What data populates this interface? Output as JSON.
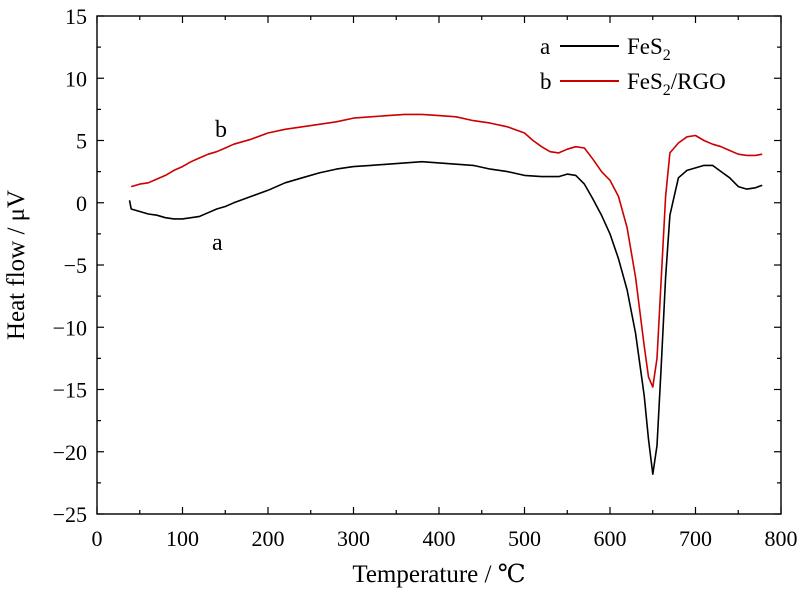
{
  "chart_data": {
    "type": "line",
    "xlabel": "Temperature / ℃",
    "ylabel": "Heat flow / μV",
    "xlim": [
      0,
      800
    ],
    "ylim": [
      -25,
      15
    ],
    "xticks": [
      0,
      100,
      200,
      300,
      400,
      500,
      600,
      700,
      800
    ],
    "yticks": [
      15,
      10,
      5,
      0,
      -5,
      -10,
      -15,
      -20,
      -25
    ],
    "ytick_labels": [
      "15",
      "10",
      "5",
      "0",
      "−5",
      "−10",
      "−15",
      "−20",
      "−25"
    ],
    "grid": false,
    "legend_position": "top-right",
    "series": [
      {
        "name": "FeS2",
        "legend_letter": "a",
        "legend_text": "FeS",
        "legend_subscript": "2",
        "legend_suffix": "",
        "curve_label": "a",
        "color": "#000000",
        "x": [
          38,
          40,
          50,
          60,
          70,
          80,
          90,
          100,
          110,
          120,
          130,
          140,
          150,
          160,
          180,
          200,
          220,
          240,
          260,
          280,
          300,
          320,
          340,
          360,
          380,
          400,
          420,
          440,
          460,
          480,
          500,
          520,
          540,
          550,
          560,
          570,
          580,
          590,
          600,
          610,
          620,
          630,
          640,
          645,
          650,
          655,
          660,
          665,
          670,
          680,
          690,
          700,
          710,
          720,
          730,
          740,
          750,
          760,
          770,
          778
        ],
        "y": [
          0.2,
          -0.5,
          -0.7,
          -0.9,
          -1.0,
          -1.2,
          -1.3,
          -1.3,
          -1.2,
          -1.1,
          -0.8,
          -0.5,
          -0.3,
          0.0,
          0.5,
          1.0,
          1.6,
          2.0,
          2.4,
          2.7,
          2.9,
          3.0,
          3.1,
          3.2,
          3.3,
          3.2,
          3.1,
          3.0,
          2.7,
          2.5,
          2.2,
          2.1,
          2.1,
          2.3,
          2.2,
          1.5,
          0.3,
          -1.0,
          -2.5,
          -4.5,
          -7.0,
          -10.5,
          -15.5,
          -19.0,
          -21.8,
          -19.5,
          -13.0,
          -6.0,
          -1.0,
          2.0,
          2.6,
          2.8,
          3.0,
          3.0,
          2.5,
          2.0,
          1.3,
          1.1,
          1.2,
          1.4
        ]
      },
      {
        "name": "FeS2/RGO",
        "legend_letter": "b",
        "legend_text": "FeS",
        "legend_subscript": "2",
        "legend_suffix": "/RGO",
        "curve_label": "b",
        "color": "#cc0000",
        "x": [
          40,
          50,
          60,
          70,
          80,
          90,
          100,
          110,
          120,
          130,
          140,
          150,
          160,
          180,
          200,
          220,
          240,
          260,
          280,
          300,
          320,
          340,
          360,
          380,
          400,
          420,
          440,
          460,
          480,
          500,
          510,
          520,
          530,
          540,
          550,
          560,
          570,
          580,
          590,
          600,
          610,
          620,
          630,
          640,
          645,
          650,
          655,
          660,
          665,
          670,
          680,
          690,
          700,
          710,
          720,
          730,
          740,
          750,
          760,
          770,
          778
        ],
        "y": [
          1.3,
          1.5,
          1.6,
          1.9,
          2.2,
          2.6,
          2.9,
          3.3,
          3.6,
          3.9,
          4.1,
          4.4,
          4.7,
          5.1,
          5.6,
          5.9,
          6.1,
          6.3,
          6.5,
          6.8,
          6.9,
          7.0,
          7.1,
          7.1,
          7.0,
          6.9,
          6.6,
          6.4,
          6.1,
          5.6,
          5.0,
          4.5,
          4.1,
          4.0,
          4.3,
          4.5,
          4.4,
          3.5,
          2.5,
          1.8,
          0.5,
          -2.0,
          -6.0,
          -11.5,
          -14.0,
          -14.8,
          -12.5,
          -6.0,
          0.5,
          4.0,
          4.8,
          5.3,
          5.4,
          5.0,
          4.7,
          4.5,
          4.2,
          3.9,
          3.8,
          3.8,
          3.9
        ]
      }
    ]
  }
}
